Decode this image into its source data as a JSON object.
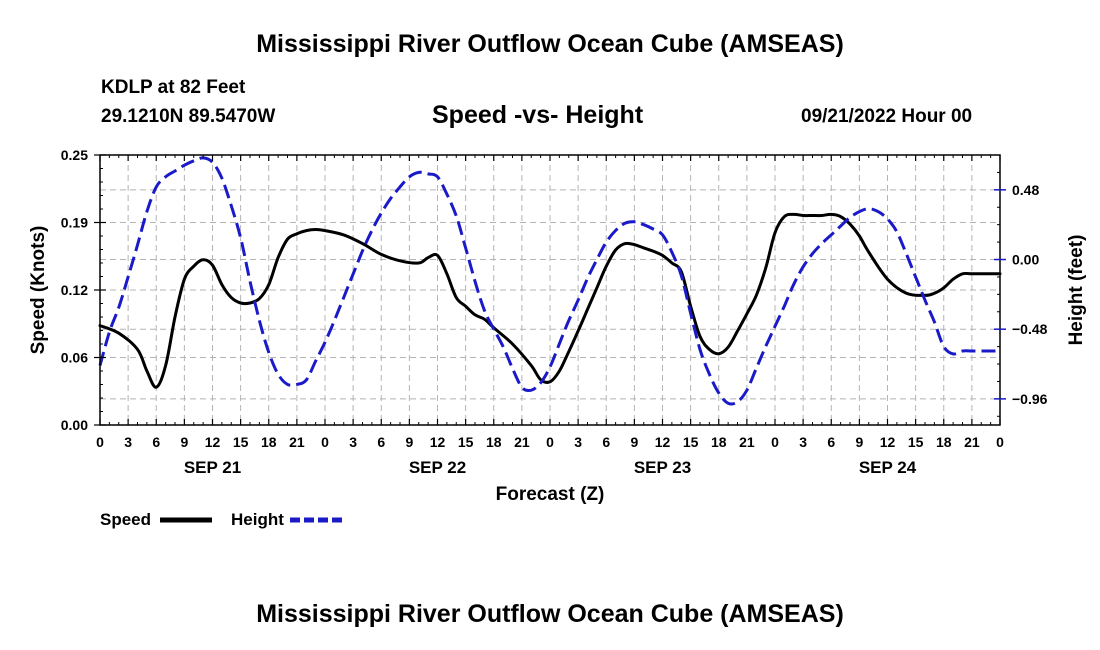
{
  "header": {
    "main_title": "Mississippi River Outflow Ocean Cube (AMSEAS)",
    "station": "KDLP at 82 Feet",
    "coords": "29.1210N  89.5470W",
    "sub_title": "Speed -vs- Height",
    "datetime": "09/21/2022 Hour 00"
  },
  "footer": {
    "title": "Mississippi River Outflow Ocean Cube (AMSEAS)"
  },
  "colors": {
    "speed": "#000000",
    "height": "#1a1ac8",
    "grid": "#b4b4b4"
  },
  "chart_data": {
    "type": "line",
    "title": "Speed -vs- Height",
    "xlabel": "Forecast (Z)",
    "ylabel": "Speed (Knots)",
    "y2label": "Height (feet)",
    "xlim": [
      0,
      96
    ],
    "ylim": [
      0,
      0.25
    ],
    "y2lim": [
      -1.14,
      0.72
    ],
    "grid": true,
    "legend_position": "bottom-left",
    "x_tick_labels": [
      "0",
      "3",
      "6",
      "9",
      "12",
      "15",
      "18",
      "21",
      "0",
      "3",
      "6",
      "9",
      "12",
      "15",
      "18",
      "21",
      "0",
      "3",
      "6",
      "9",
      "12",
      "15",
      "18",
      "21",
      "0",
      "3",
      "6",
      "9",
      "12",
      "15",
      "18",
      "21",
      "0"
    ],
    "day_labels": [
      {
        "x": 12,
        "label": "SEP 21"
      },
      {
        "x": 36,
        "label": "SEP 22"
      },
      {
        "x": 60,
        "label": "SEP 23"
      },
      {
        "x": 84,
        "label": "SEP 24"
      }
    ],
    "y_ticks": [
      {
        "value": 0.0,
        "label": "0.00"
      },
      {
        "value": 0.0625,
        "label": "0.06"
      },
      {
        "value": 0.125,
        "label": "0.12"
      },
      {
        "value": 0.1875,
        "label": "0.19"
      },
      {
        "value": 0.25,
        "label": "0.25"
      }
    ],
    "y2_ticks": [
      {
        "value": 0.48,
        "label": "0.48"
      },
      {
        "value": 0.0,
        "label": "0.00"
      },
      {
        "value": -0.48,
        "label": "−0.48"
      },
      {
        "value": -0.96,
        "label": "−0.96"
      }
    ],
    "series": [
      {
        "name": "Speed",
        "axis": "left",
        "style": "solid",
        "x": [
          0,
          2,
          4,
          5,
          6,
          7,
          8,
          9,
          10,
          11,
          12,
          13,
          14,
          15,
          16,
          17,
          18,
          19,
          20,
          21,
          22,
          23,
          24,
          26,
          28,
          30,
          32,
          34,
          35,
          36,
          37,
          38,
          39,
          40,
          41,
          42,
          44,
          46,
          47,
          48,
          49,
          50,
          51,
          52,
          53,
          54,
          55,
          56,
          57,
          58,
          59,
          60,
          61,
          62,
          63,
          64,
          65,
          66,
          67,
          68,
          69,
          70,
          71,
          72,
          73,
          74,
          75,
          76,
          77,
          78,
          79,
          80,
          81,
          82,
          84,
          86,
          88,
          89,
          90,
          91,
          92,
          93,
          94,
          95,
          96
        ],
        "values": [
          0.092,
          0.085,
          0.07,
          0.05,
          0.035,
          0.055,
          0.1,
          0.135,
          0.147,
          0.153,
          0.148,
          0.13,
          0.118,
          0.113,
          0.113,
          0.117,
          0.13,
          0.155,
          0.172,
          0.177,
          0.18,
          0.181,
          0.18,
          0.176,
          0.168,
          0.158,
          0.152,
          0.15,
          0.155,
          0.157,
          0.14,
          0.118,
          0.11,
          0.102,
          0.098,
          0.09,
          0.075,
          0.055,
          0.042,
          0.04,
          0.05,
          0.068,
          0.087,
          0.107,
          0.127,
          0.147,
          0.162,
          0.168,
          0.167,
          0.164,
          0.161,
          0.157,
          0.15,
          0.142,
          0.11,
          0.082,
          0.07,
          0.066,
          0.072,
          0.087,
          0.103,
          0.12,
          0.145,
          0.178,
          0.193,
          0.195,
          0.194,
          0.194,
          0.194,
          0.195,
          0.193,
          0.186,
          0.175,
          0.16,
          0.135,
          0.122,
          0.12,
          0.122,
          0.127,
          0.135,
          0.14,
          0.14,
          0.14,
          0.14,
          0.14
        ]
      },
      {
        "name": "Height",
        "axis": "right",
        "style": "dashed",
        "x": [
          0,
          1,
          2,
          3,
          4,
          5,
          6,
          7,
          8,
          9,
          10,
          11,
          12,
          13,
          14,
          15,
          16,
          17,
          18,
          19,
          20,
          21,
          22,
          23,
          24,
          25,
          26,
          27,
          28,
          29,
          30,
          31,
          32,
          33,
          34,
          35,
          36,
          37,
          38,
          39,
          40,
          41,
          42,
          43,
          44,
          45,
          46,
          47,
          48,
          49,
          50,
          51,
          52,
          53,
          54,
          55,
          56,
          57,
          58,
          59,
          60,
          61,
          62,
          63,
          64,
          65,
          66,
          67,
          68,
          69,
          70,
          71,
          72,
          73,
          74,
          75,
          76,
          77,
          78,
          79,
          80,
          81,
          82,
          83,
          84,
          85,
          86,
          87,
          88,
          89,
          90,
          91,
          92,
          93,
          94,
          95,
          96
        ],
        "values": [
          -0.73,
          -0.5,
          -0.33,
          -0.12,
          0.1,
          0.33,
          0.5,
          0.57,
          0.61,
          0.65,
          0.68,
          0.7,
          0.67,
          0.56,
          0.37,
          0.15,
          -0.15,
          -0.42,
          -0.64,
          -0.79,
          -0.86,
          -0.86,
          -0.83,
          -0.7,
          -0.57,
          -0.42,
          -0.26,
          -0.1,
          0.06,
          0.2,
          0.32,
          0.42,
          0.5,
          0.57,
          0.6,
          0.59,
          0.57,
          0.45,
          0.3,
          0.08,
          -0.15,
          -0.35,
          -0.48,
          -0.6,
          -0.75,
          -0.88,
          -0.9,
          -0.85,
          -0.74,
          -0.58,
          -0.42,
          -0.28,
          -0.13,
          0.0,
          0.12,
          0.2,
          0.25,
          0.26,
          0.24,
          0.21,
          0.17,
          0.05,
          -0.11,
          -0.37,
          -0.62,
          -0.79,
          -0.92,
          -0.99,
          -0.98,
          -0.9,
          -0.75,
          -0.6,
          -0.46,
          -0.32,
          -0.17,
          -0.05,
          0.04,
          0.11,
          0.17,
          0.23,
          0.29,
          0.33,
          0.35,
          0.33,
          0.28,
          0.19,
          0.04,
          -0.12,
          -0.28,
          -0.43,
          -0.6,
          -0.65,
          -0.63,
          -0.63,
          -0.63,
          -0.63,
          -0.63
        ]
      }
    ]
  }
}
